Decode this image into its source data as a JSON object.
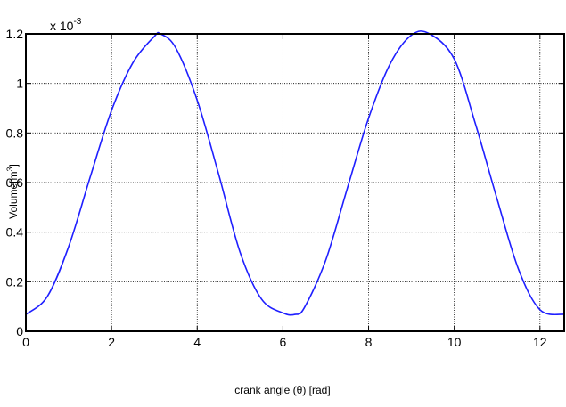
{
  "chart_data": {
    "type": "line",
    "title": "",
    "xlabel": "crank angle (θ) [rad]",
    "ylabel_base": "Volume[m",
    "ylabel_sup": "3",
    "ylabel_close": "]",
    "y_multiplier_base": "x 10",
    "y_multiplier_exp": "-3",
    "xlim": [
      0,
      12.566
    ],
    "ylim": [
      0,
      1.2
    ],
    "x_ticks": [
      0,
      2,
      4,
      6,
      8,
      10,
      12
    ],
    "x_tick_labels": [
      "0",
      "2",
      "4",
      "6",
      "8",
      "10",
      "12"
    ],
    "y_ticks": [
      0,
      0.2,
      0.4,
      0.6,
      0.8,
      1.0,
      1.2
    ],
    "y_tick_labels": [
      "0",
      "0.2",
      "0.4",
      "0.6",
      "0.8",
      "1",
      "1.2"
    ],
    "grid": true,
    "line_color": "#1f1fff",
    "series": [
      {
        "x": [
          0,
          0.5,
          1,
          1.5,
          2,
          2.5,
          3,
          3.1416,
          3.5,
          4,
          4.5,
          5,
          5.5,
          6,
          6.2832,
          6.5,
          7,
          7.5,
          8,
          8.5,
          9,
          9.4248,
          10,
          10.5,
          11,
          11.5,
          12,
          12.566
        ],
        "y": [
          0.068,
          0.14,
          0.342,
          0.621,
          0.891,
          1.084,
          1.19,
          1.2,
          1.143,
          0.932,
          0.634,
          0.319,
          0.13,
          0.074,
          0.068,
          0.095,
          0.287,
          0.575,
          0.86,
          1.078,
          1.195,
          1.2,
          1.098,
          0.833,
          0.533,
          0.25,
          0.087,
          0.068
        ]
      }
    ]
  }
}
